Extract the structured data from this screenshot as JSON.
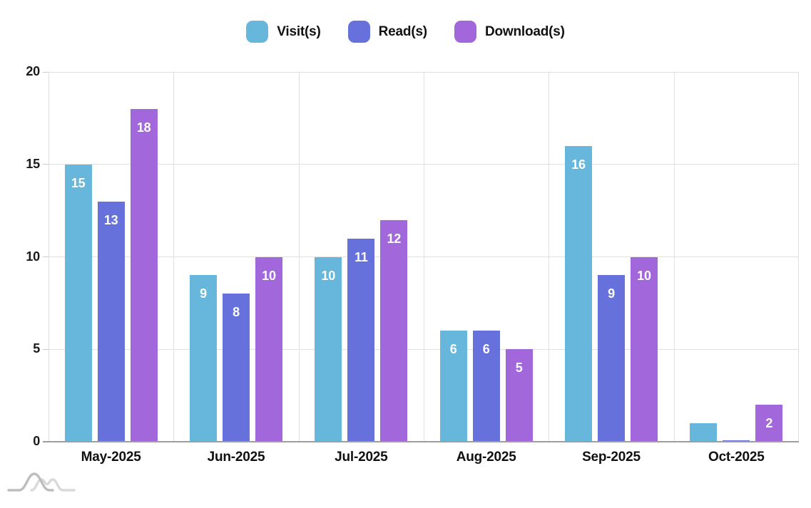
{
  "legend": {
    "items": [
      {
        "label": "Visit(s)",
        "color": "#67B7DC"
      },
      {
        "label": "Read(s)",
        "color": "#6771DC"
      },
      {
        "label": "Download(s)",
        "color": "#A367DC"
      }
    ]
  },
  "chart_data": {
    "type": "bar",
    "title": "",
    "categories": [
      "May-2025",
      "Jun-2025",
      "Jul-2025",
      "Aug-2025",
      "Sep-2025",
      "Oct-2025"
    ],
    "series": [
      {
        "name": "Visit(s)",
        "color": "#67B7DC",
        "values": [
          15,
          9,
          10,
          6,
          16,
          1
        ]
      },
      {
        "name": "Read(s)",
        "color": "#6771DC",
        "values": [
          13,
          8,
          11,
          6,
          9,
          0
        ]
      },
      {
        "name": "Download(s)",
        "color": "#A367DC",
        "values": [
          18,
          10,
          12,
          5,
          10,
          2
        ]
      }
    ],
    "ylim": [
      0,
      20
    ],
    "yticks": [
      0,
      5,
      10,
      15,
      20
    ],
    "grid": true,
    "legend_position": "top",
    "value_label_color": "#FFFFFF",
    "value_label_note": "values drawn in white inside bar tops; hidden when bar too short",
    "grid_color": "#E0E0E0",
    "baseline_color": "#9E9E9E",
    "axis_text_color": "#1A1A1A"
  },
  "branding": {
    "icon": "amcharts-logo"
  }
}
